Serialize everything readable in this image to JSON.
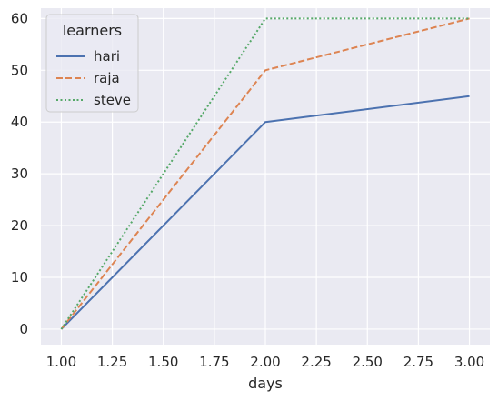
{
  "chart_data": {
    "type": "line",
    "x": [
      1.0,
      2.0,
      3.0
    ],
    "series": [
      {
        "name": "hari",
        "values": [
          0,
          40,
          45
        ],
        "color": "#4c72b0",
        "dash": "solid"
      },
      {
        "name": "raja",
        "values": [
          0,
          50,
          60
        ],
        "color": "#dd8452",
        "dash": "dashed"
      },
      {
        "name": "steve",
        "values": [
          0,
          60,
          60
        ],
        "color": "#55a868",
        "dash": "dotted"
      }
    ],
    "title": "",
    "xlabel": "days",
    "ylabel": "",
    "xlim": [
      0.9,
      3.1
    ],
    "ylim": [
      -3,
      62
    ],
    "xticks": [
      "1.00",
      "1.25",
      "1.50",
      "1.75",
      "2.00",
      "2.25",
      "2.50",
      "2.75",
      "3.00"
    ],
    "xtick_values": [
      1.0,
      1.25,
      1.5,
      1.75,
      2.0,
      2.25,
      2.5,
      2.75,
      3.0
    ],
    "yticks": [
      "0",
      "10",
      "20",
      "30",
      "40",
      "50",
      "60"
    ],
    "ytick_values": [
      0,
      10,
      20,
      30,
      40,
      50,
      60
    ],
    "legend_title": "learners",
    "legend_position": "top-left",
    "grid": true,
    "background_color": "#eaeaf2",
    "grid_color": "#ffffff"
  }
}
